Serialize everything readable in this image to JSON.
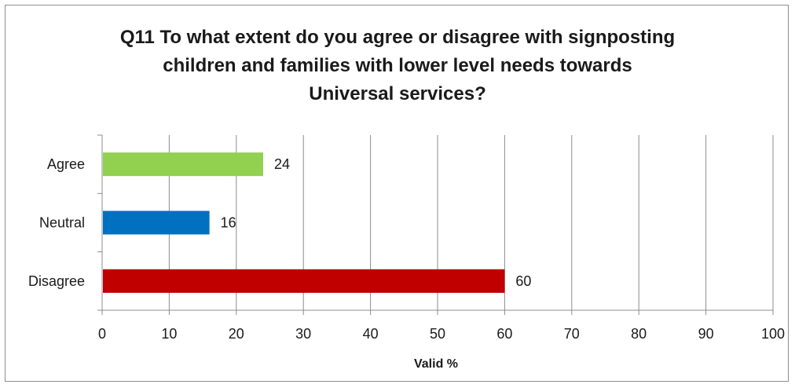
{
  "chart_data": {
    "type": "bar",
    "orientation": "horizontal",
    "title_lines": [
      "Q11 To what extent do you agree or disagree with signposting",
      "children and families with lower level needs towards",
      "Universal services?"
    ],
    "categories": [
      "Agree",
      "Neutral",
      "Disagree"
    ],
    "values": [
      24,
      16,
      60
    ],
    "colors": [
      "#92d050",
      "#0070c0",
      "#c00000"
    ],
    "xlabel": "Valid %",
    "ylabel": "",
    "xlim": [
      0,
      100
    ],
    "xticks": [
      0,
      10,
      20,
      30,
      40,
      50,
      60,
      70,
      80,
      90,
      100
    ],
    "grid": true,
    "legend": "none"
  }
}
